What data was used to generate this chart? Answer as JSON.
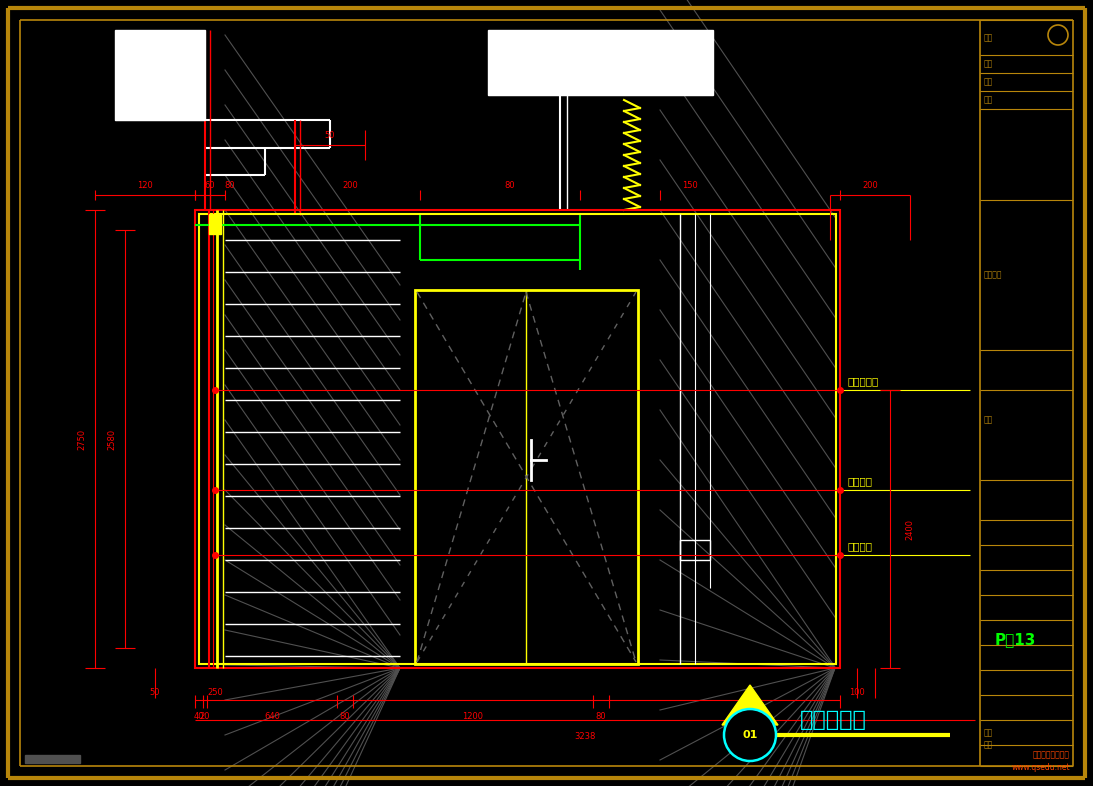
{
  "bg_color": "#000000",
  "border_color": "#b8860b",
  "dim_color": "#ff0000",
  "yellow_color": "#ffff00",
  "green_color": "#00ff00",
  "white_color": "#ffffff",
  "cyan_color": "#00ffff",
  "gray_color": "#888888",
  "label_1": "不锈钢收边",
  "label_2": "地板上墙",
  "label_3": "根镜饰面",
  "title_text": "门厅立面图",
  "page_num": "P－13",
  "page_num_color": "#00ff00",
  "watermark_line1": "齐生设计职业学校",
  "watermark_line2": "www.qsedu.net",
  "tb_labels": [
    "设计",
    "校对",
    "审核",
    "备注",
    "项目名称",
    "图名",
    "比例",
    "图号"
  ]
}
